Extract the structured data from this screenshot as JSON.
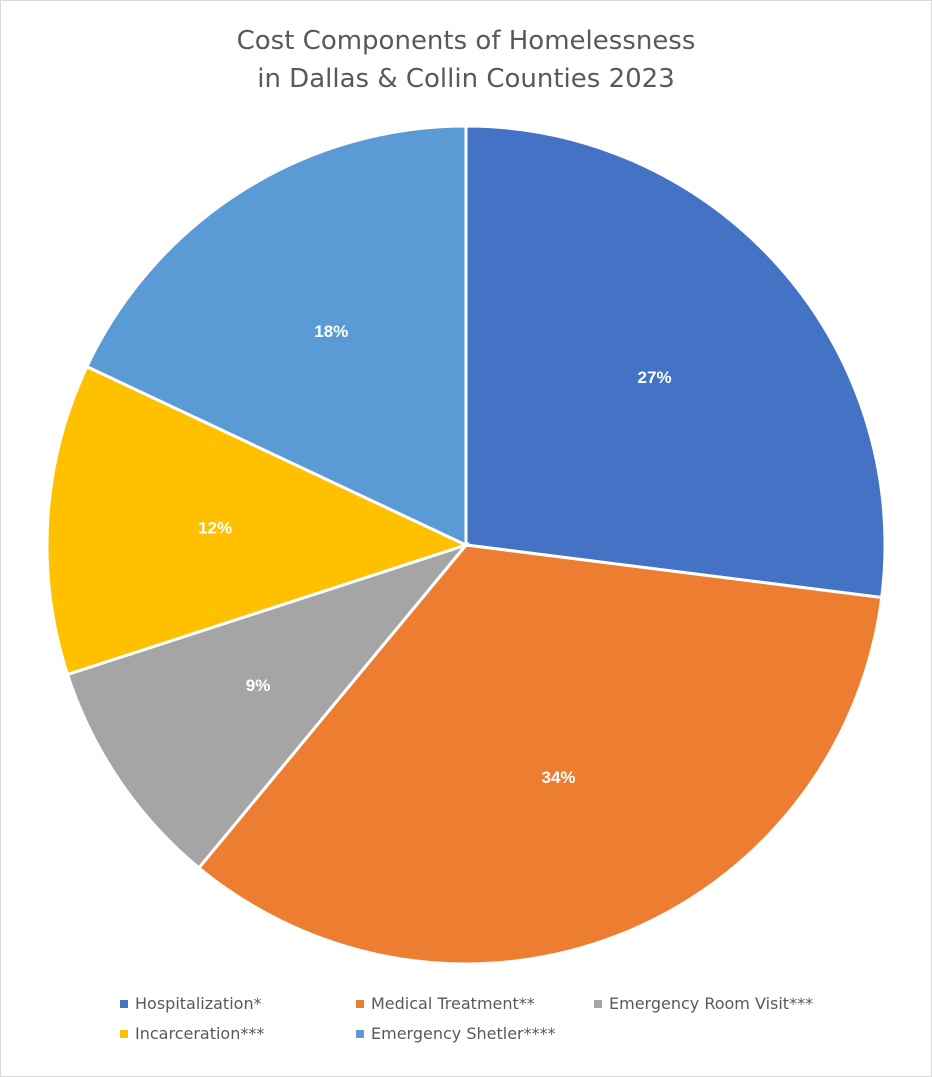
{
  "chart_data": {
    "type": "pie",
    "title_lines": [
      "Cost Components of Homelessness",
      "in Dallas & Collin Counties 2023"
    ],
    "slices": [
      {
        "name": "Hospitalization*",
        "value": 27,
        "label": "27%",
        "color": "#4472C4"
      },
      {
        "name": "Medical Treatment**",
        "value": 34,
        "label": "34%",
        "color": "#ED7D31"
      },
      {
        "name": "Emergency Room Visit***",
        "value": 9,
        "label": "9%",
        "color": "#A5A5A5"
      },
      {
        "name": "Incarceration***",
        "value": 12,
        "label": "12%",
        "color": "#FFC000"
      },
      {
        "name": "Emergency Shetler****",
        "value": 18,
        "label": "18%",
        "color": "#5B9BD5"
      }
    ],
    "legend_position": "bottom",
    "start_angle": "12 o'clock",
    "direction": "clockwise"
  }
}
